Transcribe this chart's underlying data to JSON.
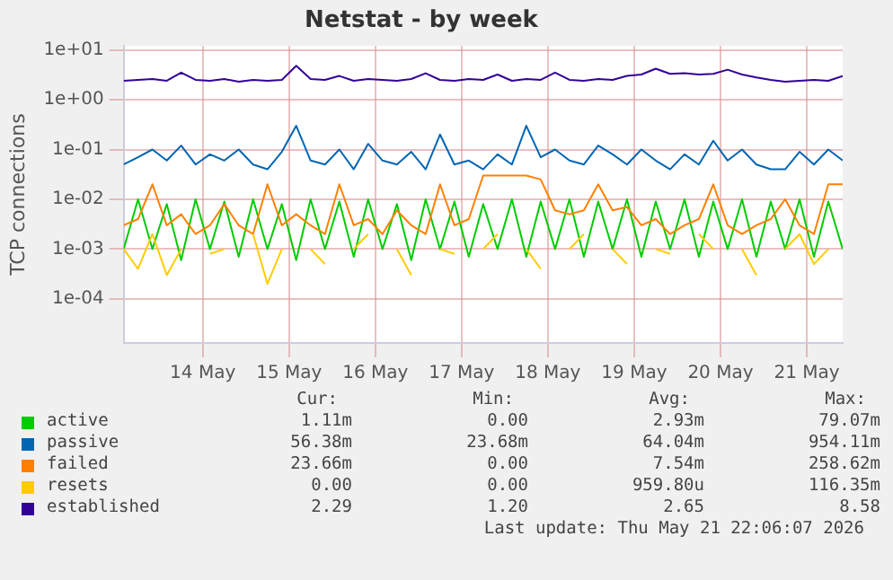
{
  "chart_data": {
    "type": "line",
    "title": "Netstat - by week",
    "ylabel": "TCP connections",
    "log": "y",
    "grid": true,
    "legend": "bottom",
    "marker": "none",
    "line_style": "solid",
    "xlim": [
      "2026-05-13T14:00",
      "2026-05-21T22:00"
    ],
    "xticks": [
      {
        "value": "2026-05-14T12:00",
        "label": "14 May"
      },
      {
        "value": "2026-05-15T12:00",
        "label": "15 May"
      },
      {
        "value": "2026-05-16T12:00",
        "label": "16 May"
      },
      {
        "value": "2026-05-17T12:00",
        "label": "17 May"
      },
      {
        "value": "2026-05-18T12:00",
        "label": "18 May"
      },
      {
        "value": "2026-05-19T12:00",
        "label": "19 May"
      },
      {
        "value": "2026-05-20T12:00",
        "label": "20 May"
      },
      {
        "value": "2026-05-21T12:00",
        "label": "21 May"
      }
    ],
    "ylim": [
      1.3e-05,
      12
    ],
    "yticks": [
      {
        "value": 0.0001,
        "label": "1e-04"
      },
      {
        "value": 0.001,
        "label": "1e-03"
      },
      {
        "value": 0.01,
        "label": "1e-02"
      },
      {
        "value": 0.1,
        "label": "1e-01"
      },
      {
        "value": 1,
        "label": "1e+00"
      },
      {
        "value": 10,
        "label": "1e+01"
      }
    ],
    "x": [
      "2026-05-13T14:00",
      "2026-05-13T18:00",
      "2026-05-13T22:00",
      "2026-05-14T02:00",
      "2026-05-14T06:00",
      "2026-05-14T10:00",
      "2026-05-14T14:00",
      "2026-05-14T18:00",
      "2026-05-14T22:00",
      "2026-05-15T02:00",
      "2026-05-15T06:00",
      "2026-05-15T10:00",
      "2026-05-15T14:00",
      "2026-05-15T18:00",
      "2026-05-15T22:00",
      "2026-05-16T02:00",
      "2026-05-16T06:00",
      "2026-05-16T10:00",
      "2026-05-16T14:00",
      "2026-05-16T18:00",
      "2026-05-16T22:00",
      "2026-05-17T02:00",
      "2026-05-17T06:00",
      "2026-05-17T10:00",
      "2026-05-17T14:00",
      "2026-05-17T18:00",
      "2026-05-17T22:00",
      "2026-05-18T02:00",
      "2026-05-18T06:00",
      "2026-05-18T10:00",
      "2026-05-18T14:00",
      "2026-05-18T18:00",
      "2026-05-18T22:00",
      "2026-05-19T02:00",
      "2026-05-19T06:00",
      "2026-05-19T10:00",
      "2026-05-19T14:00",
      "2026-05-19T18:00",
      "2026-05-19T22:00",
      "2026-05-20T02:00",
      "2026-05-20T06:00",
      "2026-05-20T10:00",
      "2026-05-20T14:00",
      "2026-05-20T18:00",
      "2026-05-20T22:00",
      "2026-05-21T02:00",
      "2026-05-21T06:00",
      "2026-05-21T10:00",
      "2026-05-21T14:00",
      "2026-05-21T18:00",
      "2026-05-21T22:00"
    ],
    "series": [
      {
        "name": "active",
        "color": "#00cc00",
        "values": [
          0.001,
          0.01,
          0.001,
          0.008,
          0.0006,
          0.01,
          0.001,
          0.009,
          0.0007,
          0.01,
          0.001,
          0.008,
          0.0006,
          0.01,
          0.001,
          0.009,
          0.0007,
          0.01,
          0.001,
          0.008,
          0.0006,
          0.01,
          0.001,
          0.009,
          0.0007,
          0.008,
          0.001,
          0.01,
          0.0007,
          0.009,
          0.001,
          0.01,
          0.0007,
          0.009,
          0.001,
          0.01,
          0.0007,
          0.009,
          0.001,
          0.01,
          0.0007,
          0.009,
          0.001,
          0.01,
          0.0007,
          0.009,
          0.001,
          0.01,
          0.0007,
          0.009,
          0.001
        ]
      },
      {
        "name": "passive",
        "color": "#0066b3",
        "values": [
          0.05,
          0.07,
          0.1,
          0.06,
          0.12,
          0.05,
          0.08,
          0.06,
          0.1,
          0.05,
          0.04,
          0.09,
          0.3,
          0.06,
          0.05,
          0.1,
          0.04,
          0.13,
          0.06,
          0.05,
          0.09,
          0.04,
          0.2,
          0.05,
          0.06,
          0.04,
          0.08,
          0.05,
          0.3,
          0.07,
          0.1,
          0.06,
          0.05,
          0.12,
          0.08,
          0.05,
          0.1,
          0.06,
          0.04,
          0.08,
          0.05,
          0.15,
          0.06,
          0.1,
          0.05,
          0.04,
          0.04,
          0.09,
          0.05,
          0.1,
          0.06
        ]
      },
      {
        "name": "failed",
        "color": "#ff8000",
        "values": [
          0.003,
          0.004,
          0.02,
          0.003,
          0.005,
          0.002,
          0.003,
          0.008,
          0.003,
          0.002,
          0.02,
          0.003,
          0.005,
          0.003,
          0.002,
          0.02,
          0.003,
          0.004,
          0.002,
          0.006,
          0.003,
          0.002,
          0.02,
          0.003,
          0.004,
          0.03,
          0.03,
          0.03,
          0.03,
          0.025,
          0.006,
          0.005,
          0.006,
          0.02,
          0.006,
          0.007,
          0.003,
          0.004,
          0.002,
          0.003,
          0.004,
          0.02,
          0.003,
          0.002,
          0.003,
          0.004,
          0.01,
          0.003,
          0.002,
          0.02,
          0.02
        ]
      },
      {
        "name": "resets",
        "color": "#ffcc00",
        "values": [
          0.001,
          0.0004,
          0.002,
          0.0003,
          0.001,
          null,
          0.0008,
          0.001,
          null,
          0.002,
          0.0002,
          0.001,
          null,
          0.001,
          0.0005,
          null,
          0.001,
          0.002,
          null,
          0.001,
          0.0003,
          null,
          0.001,
          0.0008,
          null,
          0.001,
          0.002,
          null,
          0.001,
          0.0004,
          null,
          0.001,
          0.002,
          null,
          0.001,
          0.0005,
          null,
          0.001,
          0.0008,
          null,
          0.002,
          0.001,
          null,
          0.001,
          0.0003,
          null,
          0.001,
          0.002,
          0.0005,
          0.001,
          null
        ]
      },
      {
        "name": "established",
        "color": "#330099",
        "values": [
          2.4,
          2.5,
          2.6,
          2.4,
          3.5,
          2.5,
          2.4,
          2.6,
          2.3,
          2.5,
          2.4,
          2.5,
          4.8,
          2.6,
          2.5,
          3.0,
          2.4,
          2.6,
          2.5,
          2.4,
          2.6,
          3.4,
          2.5,
          2.4,
          2.6,
          2.5,
          3.2,
          2.4,
          2.6,
          2.5,
          3.5,
          2.5,
          2.4,
          2.6,
          2.5,
          3.0,
          3.2,
          4.2,
          3.3,
          3.4,
          3.2,
          3.3,
          4.0,
          3.2,
          2.8,
          2.5,
          2.3,
          2.4,
          2.5,
          2.4,
          3.0
        ]
      }
    ],
    "annotations": [
      "Cur:",
      "Min:",
      "Avg:",
      "Max:",
      "1.11m",
      "0.00",
      "2.93m",
      "79.07m",
      "56.38m",
      "23.68m",
      "64.04m",
      "954.11m",
      "23.66m",
      "0.00",
      "7.54m",
      "258.62m",
      "0.00",
      "0.00",
      "959.80u",
      "116.35m",
      "2.29",
      "1.20",
      "2.65",
      "8.58",
      "Last update: Thu May 21 22:06:07 2026"
    ]
  }
}
